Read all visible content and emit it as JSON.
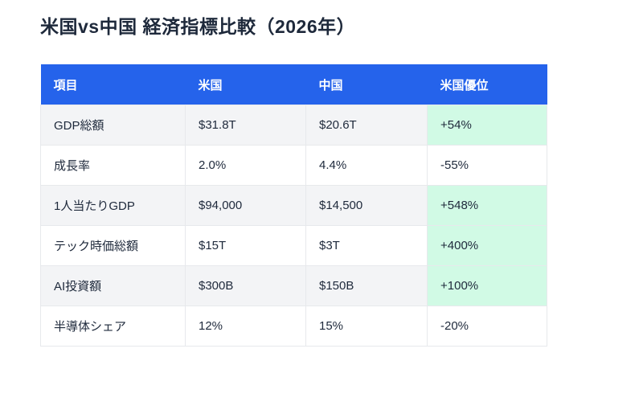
{
  "title": "米国vs中国 経済指標比較（2026年）",
  "colors": {
    "header_bg": "#2563eb",
    "header_text": "#ffffff",
    "stripe_bg": "#f3f4f6",
    "positive_bg": "#d1fae5",
    "border": "#e7e9ec",
    "text": "#1e293b"
  },
  "chart_data": {
    "type": "table",
    "title": "米国vs中国 経済指標比較（2026年）",
    "columns": [
      "項目",
      "米国",
      "中国",
      "米国優位"
    ],
    "rows": [
      {
        "item": "GDP総額",
        "us": "$31.8T",
        "china": "$20.6T",
        "advantage": "+54%",
        "positive": true
      },
      {
        "item": "成長率",
        "us": "2.0%",
        "china": "4.4%",
        "advantage": "-55%",
        "positive": false
      },
      {
        "item": "1人当たりGDP",
        "us": "$94,000",
        "china": "$14,500",
        "advantage": "+548%",
        "positive": true
      },
      {
        "item": "テック時価総額",
        "us": "$15T",
        "china": "$3T",
        "advantage": "+400%",
        "positive": true
      },
      {
        "item": "AI投資額",
        "us": "$300B",
        "china": "$150B",
        "advantage": "+100%",
        "positive": true
      },
      {
        "item": "半導体シェア",
        "us": "12%",
        "china": "15%",
        "advantage": "-20%",
        "positive": false
      }
    ]
  }
}
